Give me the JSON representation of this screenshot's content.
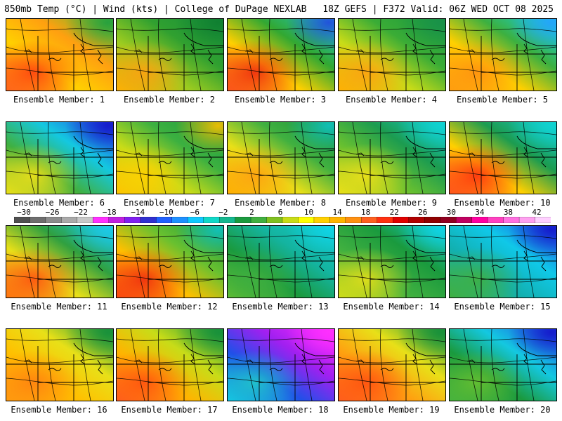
{
  "header": {
    "left": "850mb Temp (°C) | Wind (kts) | College of DuPage NEXLAB",
    "right": "18Z GEFS | F372 Valid: 06Z WED OCT 08 2025"
  },
  "caption_prefix": "Ensemble Member:",
  "members": [
    {
      "label": "Ensemble Member: 1",
      "colors": [
        "#55c030",
        "#ffa010",
        "#ffd000",
        "#ff7020"
      ],
      "cold_corner": "#209e40",
      "hot": "#ff4010"
    },
    {
      "label": "Ensemble Member: 2",
      "colors": [
        "#168f3a",
        "#30a030",
        "#9ccc20",
        "#ffb400"
      ],
      "cold_corner": "#0f7e30",
      "hot": "#ffa010"
    },
    {
      "label": "Ensemble Member: 3",
      "colors": [
        "#1ec8c8",
        "#32a832",
        "#ffd000",
        "#ff6020"
      ],
      "cold_corner": "#2246e0",
      "hot": "#f02a10"
    },
    {
      "label": "Ensemble Member: 4",
      "colors": [
        "#1a9a3e",
        "#3aac36",
        "#c8dc18",
        "#ffb400"
      ],
      "cold_corner": "#18904a",
      "hot": "#ffa010"
    },
    {
      "label": "Ensemble Member: 5",
      "colors": [
        "#10d4e8",
        "#3cb040",
        "#ffd000",
        "#ffa010"
      ],
      "cold_corner": "#26a0ff",
      "hot": "#ff9010"
    },
    {
      "label": "Ensemble Member: 6",
      "colors": [
        "#2448e6",
        "#14c8e0",
        "#40b040",
        "#e8e018"
      ],
      "cold_corner": "#1414c8",
      "hot": "#f0e018"
    },
    {
      "label": "Ensemble Member: 7",
      "colors": [
        "#1a9a3e",
        "#3cb040",
        "#c8dc18",
        "#ffc000"
      ],
      "cold_corner": "#ffc000",
      "hot": "#ffd000"
    },
    {
      "label": "Ensemble Member: 8",
      "colors": [
        "#168f3a",
        "#40b040",
        "#e8e018",
        "#ffb400"
      ],
      "cold_corner": "#10c4c4",
      "hot": "#ffa010"
    },
    {
      "label": "Ensemble Member: 9",
      "colors": [
        "#12c8c8",
        "#1c9c50",
        "#68c030",
        "#e8e018"
      ],
      "cold_corner": "#10d4d4",
      "hot": "#f0e018"
    },
    {
      "label": "Ensemble Member: 10",
      "colors": [
        "#12c8c8",
        "#1c9c50",
        "#ffd000",
        "#ff6020"
      ],
      "cold_corner": "#10d4d4",
      "hot": "#ff3010"
    },
    {
      "label": "Ensemble Member: 11",
      "colors": [
        "#14c8e0",
        "#30a040",
        "#e8e018",
        "#ff8010"
      ],
      "cold_corner": "#1ec8e8",
      "hot": "#ff5010"
    },
    {
      "label": "Ensemble Member: 12",
      "colors": [
        "#1a9a3e",
        "#68c030",
        "#ffc000",
        "#ff5010"
      ],
      "cold_corner": "#10c4c4",
      "hot": "#f02a10"
    },
    {
      "label": "Ensemble Member: 13",
      "colors": [
        "#12c8c8",
        "#14b4a0",
        "#1a9a3e",
        "#68c030"
      ],
      "cold_corner": "#10d4e8",
      "hot": "#40b040"
    },
    {
      "label": "Ensemble Member: 14",
      "colors": [
        "#12c8c8",
        "#1a9a3e",
        "#40b040",
        "#c8dc18"
      ],
      "cold_corner": "#10d4e8",
      "hot": "#e8e018"
    },
    {
      "label": "Ensemble Member: 15",
      "colors": [
        "#2050e8",
        "#10c8e8",
        "#12b0b0",
        "#40b040"
      ],
      "cold_corner": "#1414c8",
      "hot": "#40b040"
    },
    {
      "label": "Ensemble Member: 16",
      "colors": [
        "#1a9a3e",
        "#e8e018",
        "#ffc000",
        "#ffa010"
      ],
      "cold_corner": "#168f3a",
      "hot": "#ff8010"
    },
    {
      "label": "Ensemble Member: 17",
      "colors": [
        "#1a9a3e",
        "#c8dc18",
        "#ffb400",
        "#ff6020"
      ],
      "cold_corner": "#168f3a",
      "hot": "#ff5010"
    },
    {
      "label": "Ensemble Member: 18",
      "colors": [
        "#ff28ff",
        "#a020f0",
        "#2050e8",
        "#10c8e8"
      ],
      "cold_corner": "#ff30ff",
      "hot": "#20c8c8"
    },
    {
      "label": "Ensemble Member: 19",
      "colors": [
        "#1a9a3e",
        "#e8e018",
        "#ffa010",
        "#ff6020"
      ],
      "cold_corner": "#168f3a",
      "hot": "#ff5010"
    },
    {
      "label": "Ensemble Member: 20",
      "colors": [
        "#2050e8",
        "#14c8e0",
        "#1a9a3e",
        "#40b040"
      ],
      "cold_corner": "#1414c8",
      "hot": "#68c030"
    }
  ],
  "colorbar": {
    "ticks": [
      "−30",
      "−26",
      "−22",
      "−18",
      "−14",
      "−10",
      "−6",
      "−2",
      "2",
      "6",
      "10",
      "14",
      "18",
      "22",
      "26",
      "30",
      "34",
      "38",
      "42"
    ],
    "colors": [
      "#505050",
      "#6e6e6e",
      "#8c8c8c",
      "#aaaaaa",
      "#c8c8c8",
      "#ff30ff",
      "#c020e0",
      "#8020f0",
      "#3030d0",
      "#2060ff",
      "#1e90ff",
      "#10c8ff",
      "#10d8c8",
      "#14b890",
      "#1a9a3e",
      "#40b040",
      "#80c020",
      "#c8dc18",
      "#ffff00",
      "#ffd000",
      "#ffb400",
      "#ff9010",
      "#ff6020",
      "#ff3010",
      "#e00000",
      "#b00000",
      "#900000",
      "#900020",
      "#c00060",
      "#ff00a0",
      "#ff40c0",
      "#ff70e0",
      "#ffa0f0",
      "#ffd0ff"
    ]
  }
}
